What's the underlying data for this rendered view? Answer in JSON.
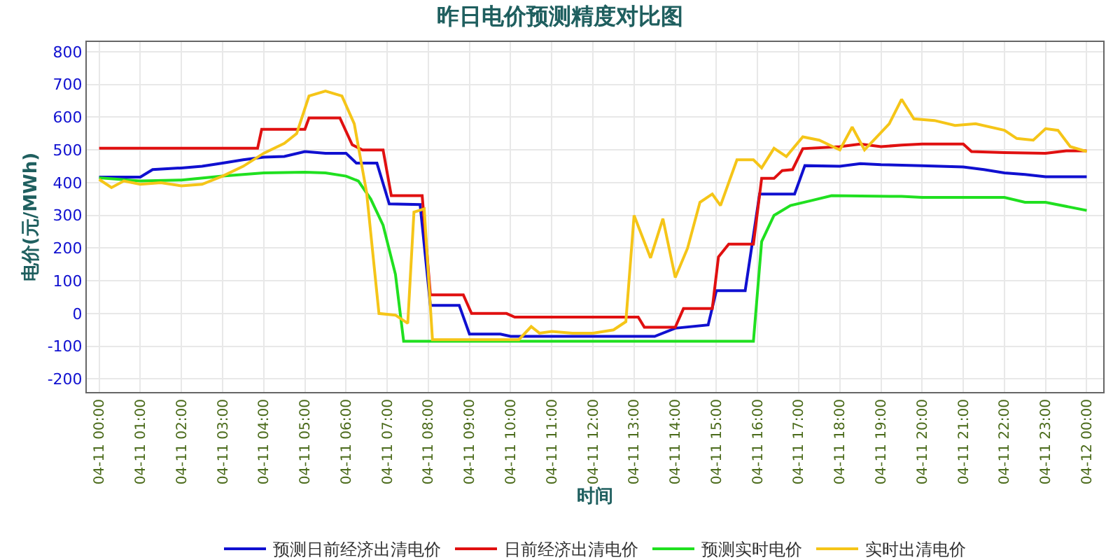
{
  "chart_data": {
    "type": "line",
    "title": "昨日电价预测精度对比图",
    "xlabel": "时间",
    "ylabel": "电价(元/MWh)",
    "xlim": [
      "--04-10T23:42",
      "--04-12T00:24"
    ],
    "ylim": [
      -240,
      830
    ],
    "xticks": [
      {
        "value": "--04-11T00:00",
        "label": "04-11 00:00"
      },
      {
        "value": "--04-11T01:00",
        "label": "04-11 01:00"
      },
      {
        "value": "--04-11T02:00",
        "label": "04-11 02:00"
      },
      {
        "value": "--04-11T03:00",
        "label": "04-11 03:00"
      },
      {
        "value": "--04-11T04:00",
        "label": "04-11 04:00"
      },
      {
        "value": "--04-11T05:00",
        "label": "04-11 05:00"
      },
      {
        "value": "--04-11T06:00",
        "label": "04-11 06:00"
      },
      {
        "value": "--04-11T07:00",
        "label": "04-11 07:00"
      },
      {
        "value": "--04-11T08:00",
        "label": "04-11 08:00"
      },
      {
        "value": "--04-11T09:00",
        "label": "04-11 09:00"
      },
      {
        "value": "--04-11T10:00",
        "label": "04-11 10:00"
      },
      {
        "value": "--04-11T11:00",
        "label": "04-11 11:00"
      },
      {
        "value": "--04-11T12:00",
        "label": "04-11 12:00"
      },
      {
        "value": "--04-11T13:00",
        "label": "04-11 13:00"
      },
      {
        "value": "--04-11T14:00",
        "label": "04-11 14:00"
      },
      {
        "value": "--04-11T15:00",
        "label": "04-11 15:00"
      },
      {
        "value": "--04-11T16:00",
        "label": "04-11 16:00"
      },
      {
        "value": "--04-11T17:00",
        "label": "04-11 17:00"
      },
      {
        "value": "--04-11T18:00",
        "label": "04-11 18:00"
      },
      {
        "value": "--04-11T19:00",
        "label": "04-11 19:00"
      },
      {
        "value": "--04-11T20:00",
        "label": "04-11 20:00"
      },
      {
        "value": "--04-11T21:00",
        "label": "04-11 21:00"
      },
      {
        "value": "--04-11T22:00",
        "label": "04-11 22:00"
      },
      {
        "value": "--04-11T23:00",
        "label": "04-11 23:00"
      },
      {
        "value": "--04-12T00:00",
        "label": "04-12 00:00"
      }
    ],
    "yticks": [
      -200,
      -100,
      0,
      100,
      200,
      300,
      400,
      500,
      600,
      700,
      800
    ],
    "grid": true,
    "legend": "bottom",
    "marker": "none",
    "line_style": "solid",
    "series": [
      {
        "name": "预测日前经济出清电价",
        "color": "#1010d0",
        "x": [
          "--04-11T00:00",
          "--04-11T01:00",
          "--04-11T01:18",
          "--04-11T02:00",
          "--04-11T02:30",
          "--04-11T03:00",
          "--04-11T03:30",
          "--04-11T04:00",
          "--04-11T04:30",
          "--04-11T05:00",
          "--04-11T05:30",
          "--04-11T06:00",
          "--04-11T06:15",
          "--04-11T06:45",
          "--04-11T07:03",
          "--04-11T07:48",
          "--04-11T08:03",
          "--04-11T08:45",
          "--04-11T09:00",
          "--04-11T09:45",
          "--04-11T10:00",
          "--04-11T13:30",
          "--04-11T14:00",
          "--04-11T14:48",
          "--04-11T15:00",
          "--04-11T15:42",
          "--04-11T16:03",
          "--04-11T16:54",
          "--04-11T17:09",
          "--04-11T18:00",
          "--04-11T18:30",
          "--04-11T19:00",
          "--04-11T20:00",
          "--04-11T21:00",
          "--04-11T21:30",
          "--04-11T22:00",
          "--04-11T22:30",
          "--04-11T23:00",
          "--04-12T00:00"
        ],
        "values": [
          417,
          417,
          440,
          445,
          450,
          460,
          470,
          478,
          480,
          495,
          490,
          490,
          460,
          460,
          335,
          333,
          25,
          25,
          -63,
          -63,
          -70,
          -70,
          -45,
          -35,
          70,
          70,
          365,
          365,
          452,
          450,
          458,
          455,
          452,
          448,
          440,
          430,
          425,
          418,
          418
        ]
      },
      {
        "name": "日前经济出清电价",
        "color": "#e01010",
        "x": [
          "--04-11T00:00",
          "--04-11T03:51",
          "--04-11T03:57",
          "--04-11T05:00",
          "--04-11T05:06",
          "--04-11T05:51",
          "--04-11T06:09",
          "--04-11T06:24",
          "--04-11T06:54",
          "--04-11T07:06",
          "--04-11T07:51",
          "--04-11T08:03",
          "--04-11T08:51",
          "--04-11T09:03",
          "--04-11T09:54",
          "--04-11T10:06",
          "--04-11T13:06",
          "--04-11T13:15",
          "--04-11T14:00",
          "--04-11T14:12",
          "--04-11T14:54",
          "--04-11T15:03",
          "--04-11T15:18",
          "--04-11T15:54",
          "--04-11T16:06",
          "--04-11T16:24",
          "--04-11T16:36",
          "--04-11T16:51",
          "--04-11T17:06",
          "--04-11T18:00",
          "--04-11T18:30",
          "--04-11T19:00",
          "--04-11T19:30",
          "--04-11T20:00",
          "--04-11T21:00",
          "--04-11T21:12",
          "--04-11T22:00",
          "--04-11T23:00",
          "--04-11T23:30",
          "--04-12T00:00"
        ],
        "values": [
          505,
          505,
          563,
          563,
          598,
          598,
          516,
          500,
          500,
          360,
          360,
          57,
          57,
          0,
          0,
          -11,
          -11,
          -42,
          -42,
          15,
          15,
          173,
          212,
          212,
          413,
          413,
          437,
          440,
          504,
          510,
          518,
          510,
          515,
          518,
          518,
          495,
          492,
          490,
          497,
          497
        ]
      },
      {
        "name": "预测实时电价",
        "color": "#20e020",
        "x": [
          "--04-11T00:00",
          "--04-11T01:00",
          "--04-11T02:00",
          "--04-11T03:00",
          "--04-11T04:00",
          "--04-11T05:00",
          "--04-11T05:30",
          "--04-11T06:00",
          "--04-11T06:18",
          "--04-11T06:36",
          "--04-11T06:54",
          "--04-11T07:12",
          "--04-11T07:24",
          "--04-11T15:54",
          "--04-11T16:06",
          "--04-11T16:24",
          "--04-11T16:48",
          "--04-11T17:18",
          "--04-11T17:48",
          "--04-11T19:30",
          "--04-11T20:00",
          "--04-11T22:00",
          "--04-11T22:30",
          "--04-11T23:00",
          "--04-12T00:00"
        ],
        "values": [
          415,
          405,
          408,
          420,
          430,
          432,
          430,
          420,
          405,
          350,
          270,
          120,
          -85,
          -85,
          220,
          300,
          330,
          345,
          360,
          358,
          355,
          355,
          340,
          340,
          315
        ]
      },
      {
        "name": "实时出清电价",
        "color": "#f5c518",
        "x": [
          "--04-11T00:00",
          "--04-11T00:18",
          "--04-11T00:36",
          "--04-11T01:00",
          "--04-11T01:30",
          "--04-11T02:00",
          "--04-11T02:30",
          "--04-11T03:00",
          "--04-11T03:30",
          "--04-11T04:00",
          "--04-11T04:30",
          "--04-11T04:48",
          "--04-11T05:06",
          "--04-11T05:30",
          "--04-11T05:54",
          "--04-11T06:12",
          "--04-11T06:30",
          "--04-11T06:48",
          "--04-11T07:12",
          "--04-11T07:30",
          "--04-11T07:39",
          "--04-11T07:54",
          "--04-11T08:06",
          "--04-11T10:12",
          "--04-11T10:30",
          "--04-11T10:42",
          "--04-11T11:00",
          "--04-11T11:30",
          "--04-11T12:00",
          "--04-11T12:30",
          "--04-11T12:48",
          "--04-11T13:00",
          "--04-11T13:24",
          "--04-11T13:42",
          "--04-11T14:00",
          "--04-11T14:18",
          "--04-11T14:36",
          "--04-11T14:54",
          "--04-11T15:06",
          "--04-11T15:30",
          "--04-11T15:54",
          "--04-11T16:06",
          "--04-11T16:24",
          "--04-11T16:42",
          "--04-11T17:06",
          "--04-11T17:30",
          "--04-11T18:00",
          "--04-11T18:18",
          "--04-11T18:36",
          "--04-11T19:12",
          "--04-11T19:30",
          "--04-11T19:48",
          "--04-11T20:18",
          "--04-11T20:48",
          "--04-11T21:18",
          "--04-11T22:00",
          "--04-11T22:18",
          "--04-11T22:42",
          "--04-11T23:00",
          "--04-11T23:18",
          "--04-11T23:36",
          "--04-12T00:00"
        ],
        "values": [
          410,
          385,
          405,
          395,
          400,
          390,
          395,
          420,
          450,
          490,
          520,
          550,
          665,
          680,
          665,
          580,
          370,
          0,
          -5,
          -30,
          310,
          320,
          -80,
          -80,
          -40,
          -60,
          -55,
          -60,
          -60,
          -50,
          -25,
          300,
          170,
          290,
          110,
          200,
          340,
          365,
          330,
          470,
          470,
          445,
          505,
          480,
          540,
          530,
          500,
          570,
          500,
          580,
          655,
          595,
          590,
          575,
          580,
          560,
          535,
          530,
          565,
          560,
          510,
          495
        ]
      }
    ]
  }
}
